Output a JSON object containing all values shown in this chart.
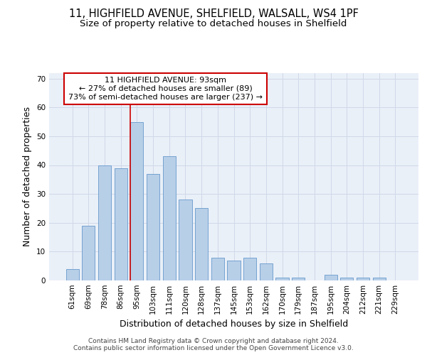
{
  "title_line1": "11, HIGHFIELD AVENUE, SHELFIELD, WALSALL, WS4 1PF",
  "title_line2": "Size of property relative to detached houses in Shelfield",
  "xlabel": "Distribution of detached houses by size in Shelfield",
  "ylabel": "Number of detached properties",
  "categories": [
    "61sqm",
    "69sqm",
    "78sqm",
    "86sqm",
    "95sqm",
    "103sqm",
    "111sqm",
    "120sqm",
    "128sqm",
    "137sqm",
    "145sqm",
    "153sqm",
    "162sqm",
    "170sqm",
    "179sqm",
    "187sqm",
    "195sqm",
    "204sqm",
    "212sqm",
    "221sqm",
    "229sqm"
  ],
  "values": [
    4,
    19,
    40,
    39,
    55,
    37,
    43,
    28,
    25,
    8,
    7,
    8,
    6,
    1,
    1,
    0,
    2,
    1,
    1,
    1,
    0
  ],
  "bar_color": "#b8cfe8",
  "bar_edge_color": "#6699cc",
  "vline_color": "#cc0000",
  "annotation_text": "11 HIGHFIELD AVENUE: 93sqm\n← 27% of detached houses are smaller (89)\n73% of semi-detached houses are larger (237) →",
  "annotation_box_color": "#ffffff",
  "annotation_box_edge_color": "#cc0000",
  "ylim": [
    0,
    72
  ],
  "yticks": [
    0,
    10,
    20,
    30,
    40,
    50,
    60,
    70
  ],
  "grid_color": "#d0d8e8",
  "background_color": "#eaf0f8",
  "footer_text": "Contains HM Land Registry data © Crown copyright and database right 2024.\nContains public sector information licensed under the Open Government Licence v3.0.",
  "title_fontsize": 10.5,
  "subtitle_fontsize": 9.5,
  "ylabel_fontsize": 9,
  "xlabel_fontsize": 9,
  "tick_fontsize": 7.5,
  "annotation_fontsize": 8,
  "footer_fontsize": 6.5
}
